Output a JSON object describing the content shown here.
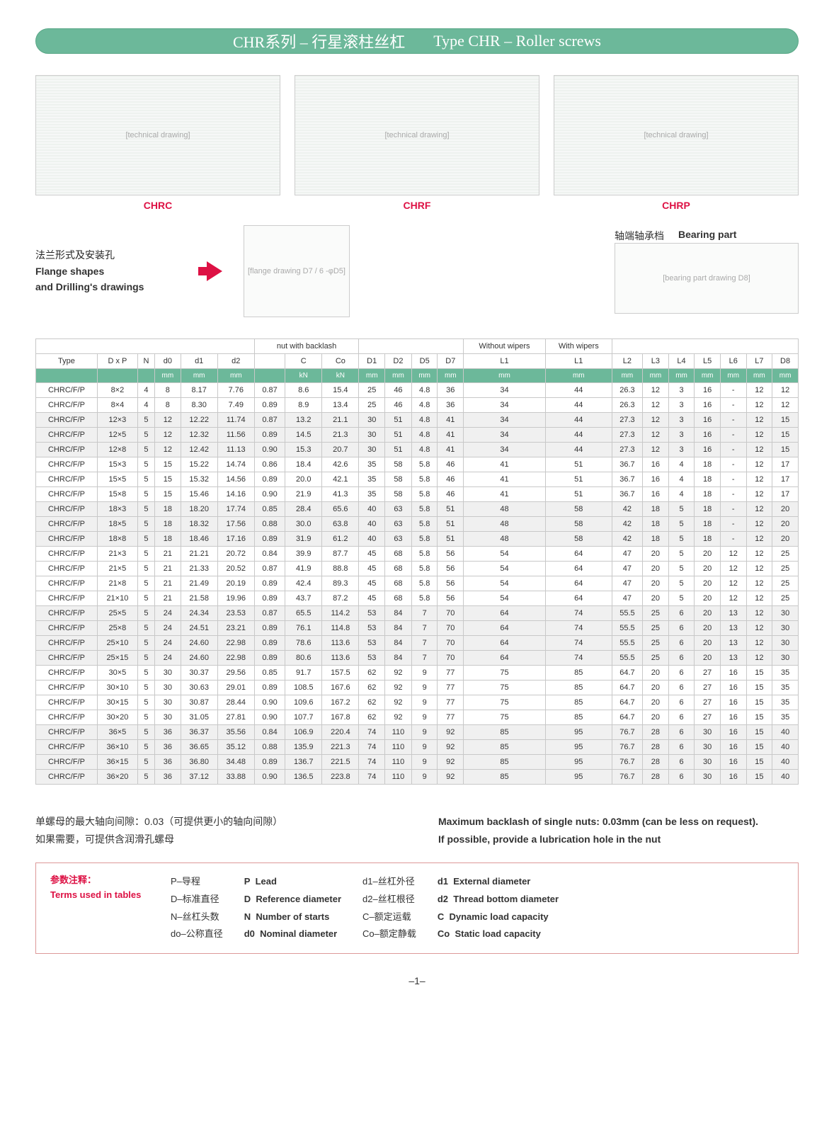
{
  "title": {
    "cn": "CHR系列 – 行星滚柱丝杠",
    "en": "Type CHR – Roller screws"
  },
  "drawings": {
    "chrc": "CHRC",
    "chrf": "CHRF",
    "chrp": "CHRP",
    "placeholder": "[technical drawing]"
  },
  "flange": {
    "cn": "法兰形式及安装孔",
    "en1": "Flange shapes",
    "en2": "and Drilling's drawings",
    "drawing_placeholder": "[flange drawing  D7 / 6 -φD5]"
  },
  "bearing": {
    "cn": "轴端轴承档",
    "en": "Bearing part",
    "drawing_placeholder": "[bearing part drawing  D8]"
  },
  "table": {
    "group_backlash": "nut with backlash",
    "group_without": "Without  wipers",
    "group_with": "With  wipers",
    "headers": [
      "Type",
      "D x P",
      "N",
      "d0",
      "d1",
      "d2",
      "",
      "C",
      "Co",
      "D1",
      "D2",
      "D5",
      "D7",
      "L1",
      "L1",
      "L2",
      "L3",
      "L4",
      "L5",
      "L6",
      "L7",
      "D8"
    ],
    "units": [
      "",
      "",
      "",
      "mm",
      "mm",
      "mm",
      "",
      "kN",
      "kN",
      "mm",
      "mm",
      "mm",
      "mm",
      "mm",
      "mm",
      "mm",
      "mm",
      "mm",
      "mm",
      "mm",
      "mm",
      "mm"
    ],
    "rows": [
      {
        "t": "CHRC/F/P",
        "v": [
          "8×2",
          "4",
          "8",
          "8.17",
          "7.76",
          "0.87",
          "8.6",
          "15.4",
          "25",
          "46",
          "4.8",
          "36",
          "34",
          "44",
          "26.3",
          "12",
          "3",
          "16",
          "-",
          "12",
          "12"
        ]
      },
      {
        "t": "CHRC/F/P",
        "v": [
          "8×4",
          "4",
          "8",
          "8.30",
          "7.49",
          "0.89",
          "8.9",
          "13.4",
          "25",
          "46",
          "4.8",
          "36",
          "34",
          "44",
          "26.3",
          "12",
          "3",
          "16",
          "-",
          "12",
          "12"
        ]
      },
      {
        "t": "CHRC/F/P",
        "v": [
          "12×3",
          "5",
          "12",
          "12.22",
          "11.74",
          "0.87",
          "13.2",
          "21.1",
          "30",
          "51",
          "4.8",
          "41",
          "34",
          "44",
          "27.3",
          "12",
          "3",
          "16",
          "-",
          "12",
          "15"
        ],
        "s": true
      },
      {
        "t": "CHRC/F/P",
        "v": [
          "12×5",
          "5",
          "12",
          "12.32",
          "11.56",
          "0.89",
          "14.5",
          "21.3",
          "30",
          "51",
          "4.8",
          "41",
          "34",
          "44",
          "27.3",
          "12",
          "3",
          "16",
          "-",
          "12",
          "15"
        ],
        "s": true
      },
      {
        "t": "CHRC/F/P",
        "v": [
          "12×8",
          "5",
          "12",
          "12.42",
          "11.13",
          "0.90",
          "15.3",
          "20.7",
          "30",
          "51",
          "4.8",
          "41",
          "34",
          "44",
          "27.3",
          "12",
          "3",
          "16",
          "-",
          "12",
          "15"
        ],
        "s": true
      },
      {
        "t": "CHRC/F/P",
        "v": [
          "15×3",
          "5",
          "15",
          "15.22",
          "14.74",
          "0.86",
          "18.4",
          "42.6",
          "35",
          "58",
          "5.8",
          "46",
          "41",
          "51",
          "36.7",
          "16",
          "4",
          "18",
          "-",
          "12",
          "17"
        ]
      },
      {
        "t": "CHRC/F/P",
        "v": [
          "15×5",
          "5",
          "15",
          "15.32",
          "14.56",
          "0.89",
          "20.0",
          "42.1",
          "35",
          "58",
          "5.8",
          "46",
          "41",
          "51",
          "36.7",
          "16",
          "4",
          "18",
          "-",
          "12",
          "17"
        ]
      },
      {
        "t": "CHRC/F/P",
        "v": [
          "15×8",
          "5",
          "15",
          "15.46",
          "14.16",
          "0.90",
          "21.9",
          "41.3",
          "35",
          "58",
          "5.8",
          "46",
          "41",
          "51",
          "36.7",
          "16",
          "4",
          "18",
          "-",
          "12",
          "17"
        ]
      },
      {
        "t": "CHRC/F/P",
        "v": [
          "18×3",
          "5",
          "18",
          "18.20",
          "17.74",
          "0.85",
          "28.4",
          "65.6",
          "40",
          "63",
          "5.8",
          "51",
          "48",
          "58",
          "42",
          "18",
          "5",
          "18",
          "-",
          "12",
          "20"
        ],
        "s": true
      },
      {
        "t": "CHRC/F/P",
        "v": [
          "18×5",
          "5",
          "18",
          "18.32",
          "17.56",
          "0.88",
          "30.0",
          "63.8",
          "40",
          "63",
          "5.8",
          "51",
          "48",
          "58",
          "42",
          "18",
          "5",
          "18",
          "-",
          "12",
          "20"
        ],
        "s": true
      },
      {
        "t": "CHRC/F/P",
        "v": [
          "18×8",
          "5",
          "18",
          "18.46",
          "17.16",
          "0.89",
          "31.9",
          "61.2",
          "40",
          "63",
          "5.8",
          "51",
          "48",
          "58",
          "42",
          "18",
          "5",
          "18",
          "-",
          "12",
          "20"
        ],
        "s": true
      },
      {
        "t": "CHRC/F/P",
        "v": [
          "21×3",
          "5",
          "21",
          "21.21",
          "20.72",
          "0.84",
          "39.9",
          "87.7",
          "45",
          "68",
          "5.8",
          "56",
          "54",
          "64",
          "47",
          "20",
          "5",
          "20",
          "12",
          "12",
          "25"
        ]
      },
      {
        "t": "CHRC/F/P",
        "v": [
          "21×5",
          "5",
          "21",
          "21.33",
          "20.52",
          "0.87",
          "41.9",
          "88.8",
          "45",
          "68",
          "5.8",
          "56",
          "54",
          "64",
          "47",
          "20",
          "5",
          "20",
          "12",
          "12",
          "25"
        ]
      },
      {
        "t": "CHRC/F/P",
        "v": [
          "21×8",
          "5",
          "21",
          "21.49",
          "20.19",
          "0.89",
          "42.4",
          "89.3",
          "45",
          "68",
          "5.8",
          "56",
          "54",
          "64",
          "47",
          "20",
          "5",
          "20",
          "12",
          "12",
          "25"
        ]
      },
      {
        "t": "CHRC/F/P",
        "v": [
          "21×10",
          "5",
          "21",
          "21.58",
          "19.96",
          "0.89",
          "43.7",
          "87.2",
          "45",
          "68",
          "5.8",
          "56",
          "54",
          "64",
          "47",
          "20",
          "5",
          "20",
          "12",
          "12",
          "25"
        ]
      },
      {
        "t": "CHRC/F/P",
        "v": [
          "25×5",
          "5",
          "24",
          "24.34",
          "23.53",
          "0.87",
          "65.5",
          "114.2",
          "53",
          "84",
          "7",
          "70",
          "64",
          "74",
          "55.5",
          "25",
          "6",
          "20",
          "13",
          "12",
          "30"
        ],
        "s": true
      },
      {
        "t": "CHRC/F/P",
        "v": [
          "25×8",
          "5",
          "24",
          "24.51",
          "23.21",
          "0.89",
          "76.1",
          "114.8",
          "53",
          "84",
          "7",
          "70",
          "64",
          "74",
          "55.5",
          "25",
          "6",
          "20",
          "13",
          "12",
          "30"
        ],
        "s": true
      },
      {
        "t": "CHRC/F/P",
        "v": [
          "25×10",
          "5",
          "24",
          "24.60",
          "22.98",
          "0.89",
          "78.6",
          "113.6",
          "53",
          "84",
          "7",
          "70",
          "64",
          "74",
          "55.5",
          "25",
          "6",
          "20",
          "13",
          "12",
          "30"
        ],
        "s": true
      },
      {
        "t": "CHRC/F/P",
        "v": [
          "25×15",
          "5",
          "24",
          "24.60",
          "22.98",
          "0.89",
          "80.6",
          "113.6",
          "53",
          "84",
          "7",
          "70",
          "64",
          "74",
          "55.5",
          "25",
          "6",
          "20",
          "13",
          "12",
          "30"
        ],
        "s": true
      },
      {
        "t": "CHRC/F/P",
        "v": [
          "30×5",
          "5",
          "30",
          "30.37",
          "29.56",
          "0.85",
          "91.7",
          "157.5",
          "62",
          "92",
          "9",
          "77",
          "75",
          "85",
          "64.7",
          "20",
          "6",
          "27",
          "16",
          "15",
          "35"
        ]
      },
      {
        "t": "CHRC/F/P",
        "v": [
          "30×10",
          "5",
          "30",
          "30.63",
          "29.01",
          "0.89",
          "108.5",
          "167.6",
          "62",
          "92",
          "9",
          "77",
          "75",
          "85",
          "64.7",
          "20",
          "6",
          "27",
          "16",
          "15",
          "35"
        ]
      },
      {
        "t": "CHRC/F/P",
        "v": [
          "30×15",
          "5",
          "30",
          "30.87",
          "28.44",
          "0.90",
          "109.6",
          "167.2",
          "62",
          "92",
          "9",
          "77",
          "75",
          "85",
          "64.7",
          "20",
          "6",
          "27",
          "16",
          "15",
          "35"
        ]
      },
      {
        "t": "CHRC/F/P",
        "v": [
          "30×20",
          "5",
          "30",
          "31.05",
          "27.81",
          "0.90",
          "107.7",
          "167.8",
          "62",
          "92",
          "9",
          "77",
          "75",
          "85",
          "64.7",
          "20",
          "6",
          "27",
          "16",
          "15",
          "35"
        ]
      },
      {
        "t": "CHRC/F/P",
        "v": [
          "36×5",
          "5",
          "36",
          "36.37",
          "35.56",
          "0.84",
          "106.9",
          "220.4",
          "74",
          "110",
          "9",
          "92",
          "85",
          "95",
          "76.7",
          "28",
          "6",
          "30",
          "16",
          "15",
          "40"
        ],
        "s": true
      },
      {
        "t": "CHRC/F/P",
        "v": [
          "36×10",
          "5",
          "36",
          "36.65",
          "35.12",
          "0.88",
          "135.9",
          "221.3",
          "74",
          "110",
          "9",
          "92",
          "85",
          "95",
          "76.7",
          "28",
          "6",
          "30",
          "16",
          "15",
          "40"
        ],
        "s": true
      },
      {
        "t": "CHRC/F/P",
        "v": [
          "36×15",
          "5",
          "36",
          "36.80",
          "34.48",
          "0.89",
          "136.7",
          "221.5",
          "74",
          "110",
          "9",
          "92",
          "85",
          "95",
          "76.7",
          "28",
          "6",
          "30",
          "16",
          "15",
          "40"
        ],
        "s": true
      },
      {
        "t": "CHRC/F/P",
        "v": [
          "36×20",
          "5",
          "36",
          "37.12",
          "33.88",
          "0.90",
          "136.5",
          "223.8",
          "74",
          "110",
          "9",
          "92",
          "85",
          "95",
          "76.7",
          "28",
          "6",
          "30",
          "16",
          "15",
          "40"
        ],
        "s": true
      }
    ]
  },
  "notes": {
    "cn1": "单螺母的最大轴向间隙：0.03（可提供更小的轴向间隙）",
    "cn2": "如果需要，可提供含润滑孔螺母",
    "en1": "Maximum backlash of single nuts: 0.03mm (can be less on request).",
    "en2": "If possible, provide a lubrication hole in the nut"
  },
  "terms": {
    "title_cn": "参数注释：",
    "title_en": "Terms used in tables",
    "col1": [
      "P–导程",
      "D–标准直径",
      "N–丝杠头数",
      "do–公称直径"
    ],
    "col2": [
      {
        "k": "P",
        "v": "Lead"
      },
      {
        "k": "D",
        "v": "Reference diameter"
      },
      {
        "k": "N",
        "v": "Number of starts"
      },
      {
        "k": "d0",
        "v": "Nominal diameter"
      }
    ],
    "col3": [
      "d1–丝杠外径",
      "d2–丝杠根径",
      "C–额定运载",
      "Co–额定静载"
    ],
    "col4": [
      {
        "k": "d1",
        "v": "External diameter"
      },
      {
        "k": "d2",
        "v": "Thread bottom diameter"
      },
      {
        "k": "C",
        "v": "Dynamic load capacity"
      },
      {
        "k": "Co",
        "v": "Static load capacity"
      }
    ]
  },
  "page": "–1–"
}
